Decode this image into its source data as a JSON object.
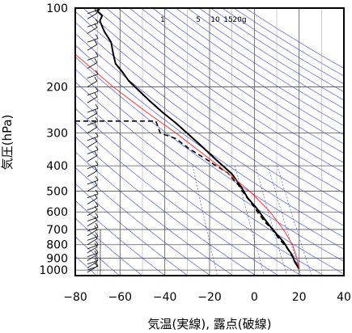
{
  "chart_data": {
    "type": "line",
    "title": "",
    "xlabel": "気温(実線), 露点(破線)",
    "ylabel": "気圧(hPa)",
    "xlim": [
      -80,
      40
    ],
    "ylim": [
      1050,
      100
    ],
    "y_scale": "log",
    "grid": true,
    "xticks": [
      -80,
      -60,
      -40,
      -20,
      0,
      20,
      40
    ],
    "xtick_labels": [
      "−80",
      "−60",
      "−40",
      "−20",
      "0",
      "20",
      "40"
    ],
    "yticks": [
      100,
      200,
      300,
      400,
      500,
      600,
      700,
      800,
      900,
      1000
    ],
    "ytick_labels": [
      "100",
      "200",
      "300",
      "400",
      "500",
      "600",
      "700",
      "800",
      "900",
      "1000"
    ],
    "mixing_ratio_labels": [
      "1",
      "5",
      "10",
      "15",
      "20g"
    ],
    "mixing_ratio_values": [
      1,
      5,
      10,
      15,
      20
    ],
    "colors": {
      "temperature": "#000000",
      "dewpoint": "#000000",
      "parcel": "#ff3333",
      "guide_lines": "#3344dd",
      "frame": "#000000"
    },
    "series": [
      {
        "line_style": "solid",
        "points": [
          [
            -69,
            100
          ],
          [
            -70,
            103
          ],
          [
            -68,
            107
          ],
          [
            -69,
            112
          ],
          [
            -67,
            123
          ],
          [
            -64,
            135
          ],
          [
            -63,
            150
          ],
          [
            -62,
            163
          ],
          [
            -59,
            175
          ],
          [
            -56,
            190
          ],
          [
            -52,
            205
          ],
          [
            -47,
            225
          ],
          [
            -41,
            250
          ],
          [
            -35,
            275
          ],
          [
            -30,
            300
          ],
          [
            -23,
            340
          ],
          [
            -17,
            380
          ],
          [
            -10,
            430
          ],
          [
            -6,
            480
          ],
          [
            -3,
            530
          ],
          [
            1,
            580
          ],
          [
            4,
            630
          ],
          [
            7,
            680
          ],
          [
            10,
            730
          ],
          [
            13,
            780
          ],
          [
            15,
            830
          ],
          [
            17,
            880
          ],
          [
            18,
            930
          ],
          [
            20,
            990
          ]
        ]
      },
      {
        "line_style": "dashed",
        "points": [
          [
            -80,
            270
          ],
          [
            -44,
            270
          ],
          [
            -42,
            300
          ],
          [
            -35,
            315
          ],
          [
            -29,
            345
          ],
          [
            -22,
            375
          ],
          [
            -18,
            395
          ],
          [
            -15,
            410
          ],
          [
            -12,
            425
          ],
          [
            -10,
            445
          ],
          [
            -7,
            475
          ],
          [
            -4,
            520
          ],
          [
            -1,
            560
          ],
          [
            2,
            610
          ],
          [
            5,
            660
          ],
          [
            8,
            700
          ],
          [
            11,
            760
          ],
          [
            14,
            810
          ],
          [
            16,
            860
          ],
          [
            18,
            920
          ],
          [
            20,
            985
          ]
        ]
      },
      {
        "line_style": "solid",
        "points": [
          [
            -80,
            150
          ],
          [
            -63,
            200
          ],
          [
            -48,
            250
          ],
          [
            -35,
            300
          ],
          [
            -16,
            400
          ],
          [
            -2,
            500
          ],
          [
            7,
            600
          ],
          [
            13,
            700
          ],
          [
            17,
            800
          ],
          [
            19,
            900
          ],
          [
            20,
            990
          ]
        ]
      }
    ],
    "wind_barb_pressures": [
      100,
      105,
      110,
      118,
      125,
      135,
      145,
      158,
      170,
      185,
      200,
      215,
      230,
      250,
      265,
      280,
      300,
      320,
      340,
      360,
      385,
      410,
      440,
      470,
      500,
      530,
      560,
      590,
      620,
      650,
      680,
      710,
      740,
      770,
      800,
      830,
      860,
      890,
      920,
      950,
      980,
      1000,
      1020
    ]
  }
}
